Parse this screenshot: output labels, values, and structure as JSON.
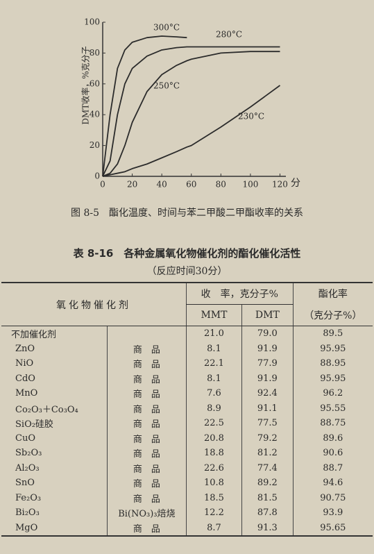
{
  "chart_data": {
    "type": "line",
    "y_label": "DMT收率，%克分子",
    "x_unit": "分",
    "x": [
      0,
      5,
      10,
      15,
      20,
      30,
      40,
      50,
      57,
      60,
      80,
      100,
      120
    ],
    "xlim": [
      0,
      124
    ],
    "xticks": [
      0,
      20,
      40,
      60,
      80,
      100,
      120
    ],
    "ylim": [
      0,
      100
    ],
    "yticks": [
      0,
      20,
      40,
      60,
      80,
      100
    ],
    "grid": false,
    "series": [
      {
        "name": "300°C",
        "color": "#2b2b2b",
        "values": [
          0,
          40,
          70,
          82,
          87,
          90,
          91,
          90.5,
          90,
          null,
          null,
          null,
          null
        ]
      },
      {
        "name": "280°C",
        "color": "#2b2b2b",
        "values": [
          0,
          10,
          40,
          60,
          70,
          78,
          82,
          83.5,
          84,
          84,
          84,
          84,
          84
        ]
      },
      {
        "name": "250°C",
        "color": "#2b2b2b",
        "values": [
          0,
          2,
          8,
          20,
          35,
          55,
          66,
          72,
          75,
          76,
          80,
          81,
          81
        ]
      },
      {
        "name": "230°C",
        "color": "#2b2b2b",
        "values": [
          0,
          1,
          2,
          3,
          5,
          8,
          12,
          16,
          19,
          20,
          32,
          45,
          59
        ]
      }
    ]
  },
  "caption": "图 8-5　酯化温度、时间与苯二甲酸二甲酯收率的关系",
  "table": {
    "title": "表 8-16　各种金属氧化物催化剂的酯化催化活性",
    "subtitle": "（反应时间30分）",
    "header": {
      "catalyst": "氧化物催化剂",
      "yield": "收　率，克分子%",
      "mmt": "MMT",
      "dmt": "DMT",
      "rate": "酯化率",
      "rate_unit": "（克分子%）"
    },
    "rows": [
      [
        "不加催化剂",
        "",
        "21.0",
        "79.0",
        "89.5"
      ],
      [
        "ZnO",
        "商　品",
        "8.1",
        "91.9",
        "95.95"
      ],
      [
        "NiO",
        "商　品",
        "22.1",
        "77.9",
        "88.95"
      ],
      [
        "CdO",
        "商　品",
        "8.1",
        "91.9",
        "95.95"
      ],
      [
        "MnO",
        "商　品",
        "7.6",
        "92.4",
        "96.2"
      ],
      [
        "Co₂O₃＋Co₃O₄",
        "商　品",
        "8.9",
        "91.1",
        "95.55"
      ],
      [
        "SiO₂硅胶",
        "商　品",
        "22.5",
        "77.5",
        "88.75"
      ],
      [
        "CuO",
        "商　品",
        "20.8",
        "79.2",
        "89.6"
      ],
      [
        "Sb₂O₃",
        "商　品",
        "18.8",
        "81.2",
        "90.6"
      ],
      [
        "Al₂O₃",
        "商　品",
        "22.6",
        "77.4",
        "88.7"
      ],
      [
        "SnO",
        "商　品",
        "10.8",
        "89.2",
        "94.6"
      ],
      [
        "Fe₂O₃",
        "商　品",
        "18.5",
        "81.5",
        "90.75"
      ],
      [
        "Bi₂O₃",
        "Bi(NO₃)₃焙烧",
        "12.2",
        "87.8",
        "93.9"
      ],
      [
        "MgO",
        "商　品",
        "8.7",
        "91.3",
        "95.65"
      ]
    ]
  }
}
